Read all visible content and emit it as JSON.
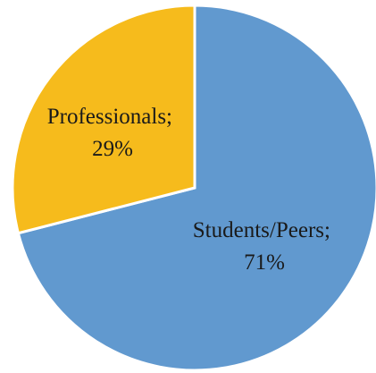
{
  "chart_data": {
    "type": "pie",
    "start_angle_deg": 0,
    "direction": "clockwise",
    "slices": [
      {
        "name": "Students/Peers",
        "value": 71,
        "color": "#6199cf",
        "label_line1": "Students/Peers;",
        "label_line2": "71%"
      },
      {
        "name": "Professionals",
        "value": 29,
        "color": "#f6bb1c",
        "label_line1": "Professionals;",
        "label_line2": "29%"
      }
    ]
  }
}
